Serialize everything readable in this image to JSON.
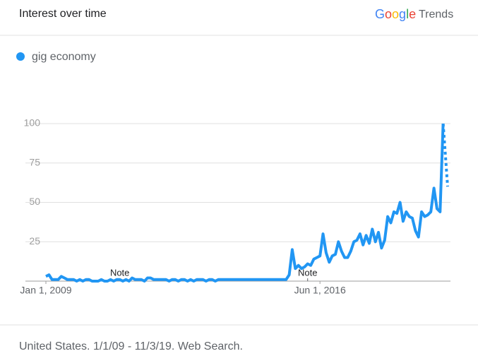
{
  "header": {
    "title": "Interest over time",
    "brand": "Google",
    "product": "Trends"
  },
  "chart_data": {
    "type": "line",
    "series": [
      {
        "name": "gig economy",
        "color": "#2196f3",
        "values": [
          3,
          4,
          1,
          1,
          1,
          3,
          2,
          1,
          1,
          1,
          0,
          1,
          0,
          1,
          1,
          0,
          0,
          0,
          1,
          0,
          0,
          1,
          0,
          1,
          1,
          0,
          1,
          0,
          2,
          1,
          1,
          1,
          0,
          2,
          2,
          1,
          1,
          1,
          1,
          1,
          0,
          1,
          1,
          0,
          1,
          1,
          0,
          1,
          0,
          1,
          1,
          1,
          0,
          1,
          1,
          0,
          1,
          1,
          1,
          1,
          1,
          1,
          1,
          1,
          1,
          1,
          1,
          1,
          1,
          1,
          1,
          1,
          1,
          1,
          1,
          1,
          1,
          1,
          1,
          4,
          20,
          8,
          10,
          8,
          9,
          11,
          10,
          14,
          15,
          16,
          30,
          18,
          12,
          16,
          17,
          25,
          19,
          15,
          15,
          19,
          25,
          26,
          30,
          23,
          29,
          24,
          33,
          25,
          31,
          21,
          26,
          41,
          37,
          44,
          43,
          50,
          38,
          44,
          41,
          40,
          32,
          28,
          44,
          41,
          42,
          44,
          59,
          46,
          44,
          100,
          60
        ]
      }
    ],
    "x": [
      "2009-01",
      "2009-02",
      "2009-03",
      "2009-04",
      "2009-05",
      "2009-06",
      "2009-07",
      "2009-08",
      "2009-09",
      "2009-10",
      "2009-11",
      "2009-12",
      "2010-01",
      "2010-02",
      "2010-03",
      "2010-04",
      "2010-05",
      "2010-06",
      "2010-07",
      "2010-08",
      "2010-09",
      "2010-10",
      "2010-11",
      "2010-12",
      "2011-01",
      "2011-02",
      "2011-03",
      "2011-04",
      "2011-05",
      "2011-06",
      "2011-07",
      "2011-08",
      "2011-09",
      "2011-10",
      "2011-11",
      "2011-12",
      "2012-01",
      "2012-02",
      "2012-03",
      "2012-04",
      "2012-05",
      "2012-06",
      "2012-07",
      "2012-08",
      "2012-09",
      "2012-10",
      "2012-11",
      "2012-12",
      "2013-01",
      "2013-02",
      "2013-03",
      "2013-04",
      "2013-05",
      "2013-06",
      "2013-07",
      "2013-08",
      "2013-09",
      "2013-10",
      "2013-11",
      "2013-12",
      "2014-01",
      "2014-02",
      "2014-03",
      "2014-04",
      "2014-05",
      "2014-06",
      "2014-07",
      "2014-08",
      "2014-09",
      "2014-10",
      "2014-11",
      "2014-12",
      "2015-01",
      "2015-02",
      "2015-03",
      "2015-04",
      "2015-05",
      "2015-06",
      "2015-07",
      "2015-08",
      "2015-09",
      "2015-10",
      "2015-11",
      "2015-12",
      "2016-01",
      "2016-02",
      "2016-03",
      "2016-04",
      "2016-05",
      "2016-06",
      "2016-07",
      "2016-08",
      "2016-09",
      "2016-10",
      "2016-11",
      "2016-12",
      "2017-01",
      "2017-02",
      "2017-03",
      "2017-04",
      "2017-05",
      "2017-06",
      "2017-07",
      "2017-08",
      "2017-09",
      "2017-10",
      "2017-11",
      "2017-12",
      "2018-01",
      "2018-02",
      "2018-03",
      "2018-04",
      "2018-05",
      "2018-06",
      "2018-07",
      "2018-08",
      "2018-09",
      "2018-10",
      "2018-11",
      "2018-12",
      "2019-01",
      "2019-02",
      "2019-03",
      "2019-04",
      "2019-05",
      "2019-06",
      "2019-07",
      "2019-08",
      "2019-09",
      "2019-10",
      "2019-11"
    ],
    "partial_last": true,
    "ylim": [
      0,
      100
    ],
    "yticks": [
      25,
      50,
      75,
      100
    ],
    "grid": true,
    "xticks": [
      {
        "value": "2009-01",
        "label": "Jan 1, 2009"
      },
      {
        "value": "2016-06",
        "label": "Jun 1, 2016"
      }
    ],
    "annotations": [
      {
        "x": "2011-01",
        "label": "Note"
      },
      {
        "x": "2016-02",
        "label": "Note"
      }
    ],
    "footer": "United States. 1/1/09 - 11/3/19. Web Search."
  }
}
